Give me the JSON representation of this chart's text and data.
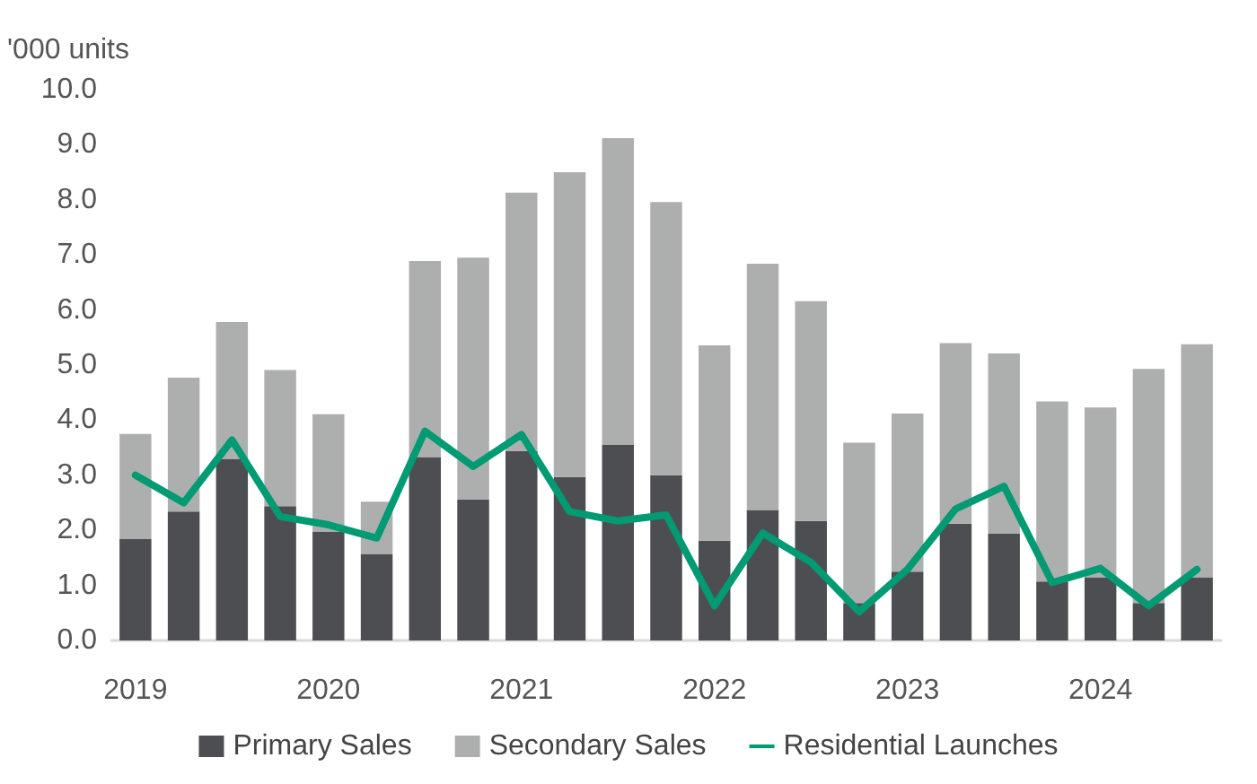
{
  "chart_data": {
    "type": "bar",
    "stacked": true,
    "ylabel": "'000 units",
    "categories": [
      "2019",
      null,
      null,
      null,
      "2020",
      null,
      null,
      null,
      "2021",
      null,
      null,
      null,
      "2022",
      null,
      null,
      null,
      "2023",
      null,
      null,
      null,
      "2024",
      null,
      null
    ],
    "series": [
      {
        "name": "Primary Sales",
        "color": "#4d4e52",
        "values": [
          1.84,
          2.34,
          3.3,
          2.44,
          1.98,
          1.57,
          3.33,
          2.56,
          3.44,
          2.97,
          3.55,
          3.0,
          1.81,
          2.37,
          2.17,
          0.68,
          1.25,
          2.12,
          1.94,
          1.07,
          1.15,
          0.68,
          1.15
        ]
      },
      {
        "name": "Secondary Sales",
        "color": "#adafae",
        "values": [
          1.91,
          2.43,
          2.48,
          2.47,
          2.13,
          0.95,
          3.56,
          4.39,
          4.69,
          5.53,
          5.57,
          4.96,
          3.55,
          4.47,
          3.99,
          2.91,
          2.87,
          3.28,
          3.27,
          3.27,
          3.08,
          4.25,
          4.23
        ]
      },
      {
        "name": "Residential Launches",
        "type": "line",
        "color": "#009a73",
        "values": [
          3.0,
          2.5,
          3.64,
          2.25,
          2.1,
          1.86,
          3.8,
          3.16,
          3.74,
          2.34,
          2.17,
          2.28,
          0.63,
          1.95,
          1.42,
          0.52,
          1.29,
          2.39,
          2.8,
          1.05,
          1.31,
          0.63,
          1.29
        ]
      }
    ],
    "ylim": [
      0,
      10
    ],
    "yticks": [
      {
        "value": 0,
        "label": "0.0"
      },
      {
        "value": 1,
        "label": "1.0"
      },
      {
        "value": 2,
        "label": "2.0"
      },
      {
        "value": 3,
        "label": "3.0"
      },
      {
        "value": 4,
        "label": "4.0"
      },
      {
        "value": 5,
        "label": "5.0"
      },
      {
        "value": 6,
        "label": "6.0"
      },
      {
        "value": 7,
        "label": "7.0"
      },
      {
        "value": 8,
        "label": "8.0"
      },
      {
        "value": 9,
        "label": "9.0"
      },
      {
        "value": 10,
        "label": "10.0"
      }
    ],
    "grid": false,
    "legend": "bottom",
    "marker": "none",
    "line_style": "solid"
  }
}
